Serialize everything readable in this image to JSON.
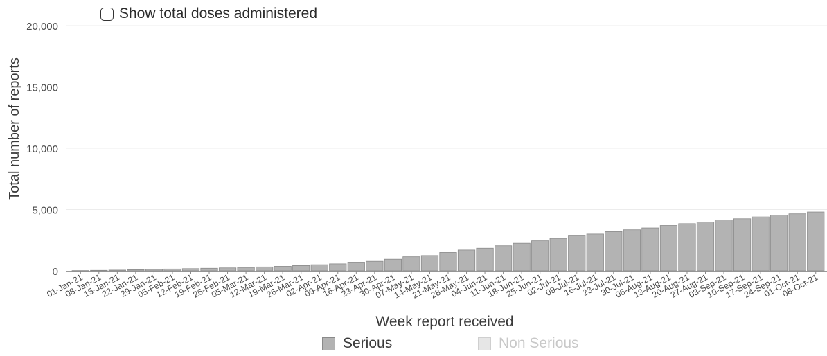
{
  "controls": {
    "toggle_label": "Show total doses administered",
    "toggle_checked": false
  },
  "colors": {
    "serious": "#b3b3b3",
    "serious_border": "#8a8a8a",
    "non_serious": "#e6e6e6",
    "non_serious_border": "#cfcfcf",
    "grid": "#ececec",
    "axis_text": "#4a4a4a"
  },
  "legend": {
    "serious_label": "Serious",
    "non_serious_label": "Non Serious"
  },
  "chart_data": {
    "type": "bar",
    "xlabel": "Week report received",
    "ylabel": "Total number of reports",
    "ylim": [
      0,
      20000
    ],
    "yticks": [
      0,
      5000,
      10000,
      15000,
      20000
    ],
    "ytick_labels": [
      "0",
      "5,000",
      "10,000",
      "15,000",
      "20,000"
    ],
    "grid": true,
    "legend_placement": "bottom-center",
    "categories": [
      "01-Jan-21",
      "08-Jan-21",
      "15-Jan-21",
      "22-Jan-21",
      "29-Jan-21",
      "05-Feb-21",
      "12-Feb-21",
      "19-Feb-21",
      "26-Feb-21",
      "05-Mar-21",
      "12-Mar-21",
      "19-Mar-21",
      "26-Mar-21",
      "02-Apr-21",
      "09-Apr-21",
      "16-Apr-21",
      "23-Apr-21",
      "30-Apr-21",
      "07-May-21",
      "14-May-21",
      "21-May-21",
      "28-May-21",
      "04-Jun-21",
      "11-Jun-21",
      "18-Jun-21",
      "25-Jun-21",
      "02-Jul-21",
      "09-Jul-21",
      "16-Jul-21",
      "23-Jul-21",
      "30-Jul-21",
      "06-Aug-21",
      "13-Aug-21",
      "20-Aug-21",
      "27-Aug-21",
      "03-Sep-21",
      "10-Sep-21",
      "17-Sep-21",
      "24-Sep-21",
      "01-Oct-21",
      "08-Oct-21"
    ],
    "series": [
      {
        "name": "Serious",
        "values": [
          20,
          40,
          60,
          90,
          120,
          150,
          180,
          210,
          240,
          280,
          320,
          370,
          430,
          500,
          570,
          650,
          780,
          950,
          1150,
          1250,
          1500,
          1700,
          1850,
          2050,
          2250,
          2450,
          2650,
          2850,
          3000,
          3200,
          3350,
          3500,
          3700,
          3850,
          3980,
          4150,
          4250,
          4400,
          4550,
          4650,
          4800
        ]
      },
      {
        "name": "Non Serious",
        "values": [
          0,
          0,
          0,
          0,
          0,
          0,
          0,
          0,
          0,
          0,
          0,
          0,
          0,
          0,
          0,
          0,
          0,
          0,
          0,
          0,
          0,
          0,
          0,
          0,
          0,
          0,
          0,
          0,
          0,
          0,
          0,
          0,
          0,
          0,
          0,
          0,
          0,
          0,
          0,
          0,
          0
        ]
      }
    ]
  }
}
